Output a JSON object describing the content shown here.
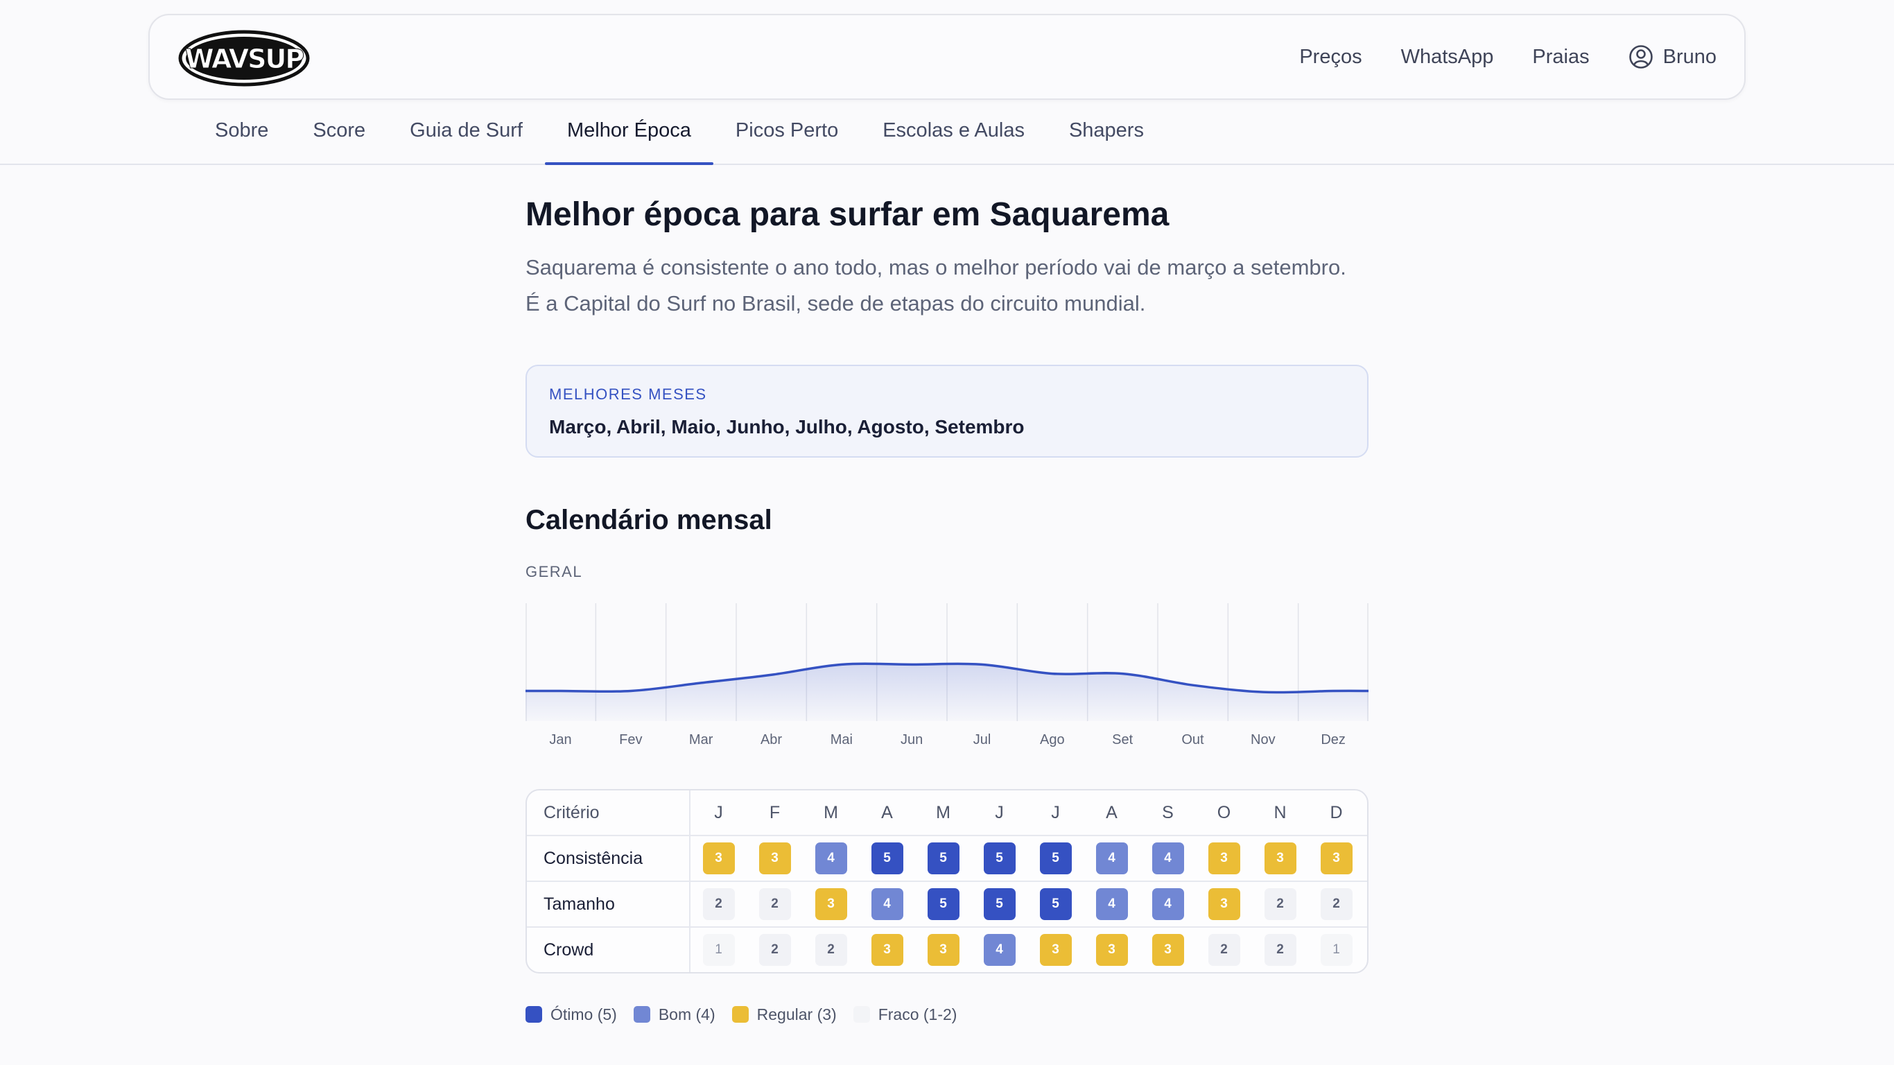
{
  "header": {
    "logo_text": "WAVSUP",
    "nav": [
      "Preços",
      "WhatsApp",
      "Praias"
    ],
    "user_name": "Bruno"
  },
  "tabs": [
    {
      "label": "Sobre",
      "active": false
    },
    {
      "label": "Score",
      "active": false
    },
    {
      "label": "Guia de Surf",
      "active": false
    },
    {
      "label": "Melhor Época",
      "active": true
    },
    {
      "label": "Picos Perto",
      "active": false
    },
    {
      "label": "Escolas e Aulas",
      "active": false
    },
    {
      "label": "Shapers",
      "active": false
    }
  ],
  "page": {
    "title": "Melhor época para surfar em Saquarema",
    "intro_line1": "Saquarema é consistente o ano todo, mas o melhor período vai de março a setembro.",
    "intro_line2": "É a Capital do Surf no Brasil, sede de etapas do circuito mundial.",
    "best_months_label": "MELHORES MESES",
    "best_months_value": "Março, Abril, Maio, Junho, Julho, Agosto, Setembro",
    "calendar_title": "Calendário mensal",
    "geral_label": "GERAL"
  },
  "chart_data": {
    "type": "area",
    "categories": [
      "Jan",
      "Fev",
      "Mar",
      "Abr",
      "Mai",
      "Jun",
      "Jul",
      "Ago",
      "Set",
      "Out",
      "Nov",
      "Dez"
    ],
    "values": [
      2.5,
      2.5,
      3.2,
      3.9,
      4.8,
      4.8,
      4.8,
      4.0,
      4.0,
      3.0,
      2.4,
      2.5
    ],
    "ylim": [
      0,
      10
    ],
    "grid": "vertical",
    "line_color": "#3552c2"
  },
  "table": {
    "criterion_header": "Critério",
    "months": [
      "J",
      "F",
      "M",
      "A",
      "M",
      "J",
      "J",
      "A",
      "S",
      "O",
      "N",
      "D"
    ],
    "rows": [
      {
        "name": "Consistência",
        "values": [
          3,
          3,
          4,
          5,
          5,
          5,
          5,
          4,
          4,
          3,
          3,
          3
        ]
      },
      {
        "name": "Tamanho",
        "values": [
          2,
          2,
          3,
          4,
          5,
          5,
          5,
          4,
          4,
          3,
          2,
          2
        ]
      },
      {
        "name": "Crowd",
        "values": [
          1,
          2,
          2,
          3,
          3,
          4,
          3,
          3,
          3,
          2,
          2,
          1
        ]
      }
    ]
  },
  "legend": [
    {
      "label": "Ótimo (5)",
      "color": "#3551c2"
    },
    {
      "label": "Bom (4)",
      "color": "#7187d4"
    },
    {
      "label": "Regular (3)",
      "color": "#ebbd36"
    },
    {
      "label": "Fraco (1-2)",
      "color": "#f3f4f7"
    }
  ]
}
